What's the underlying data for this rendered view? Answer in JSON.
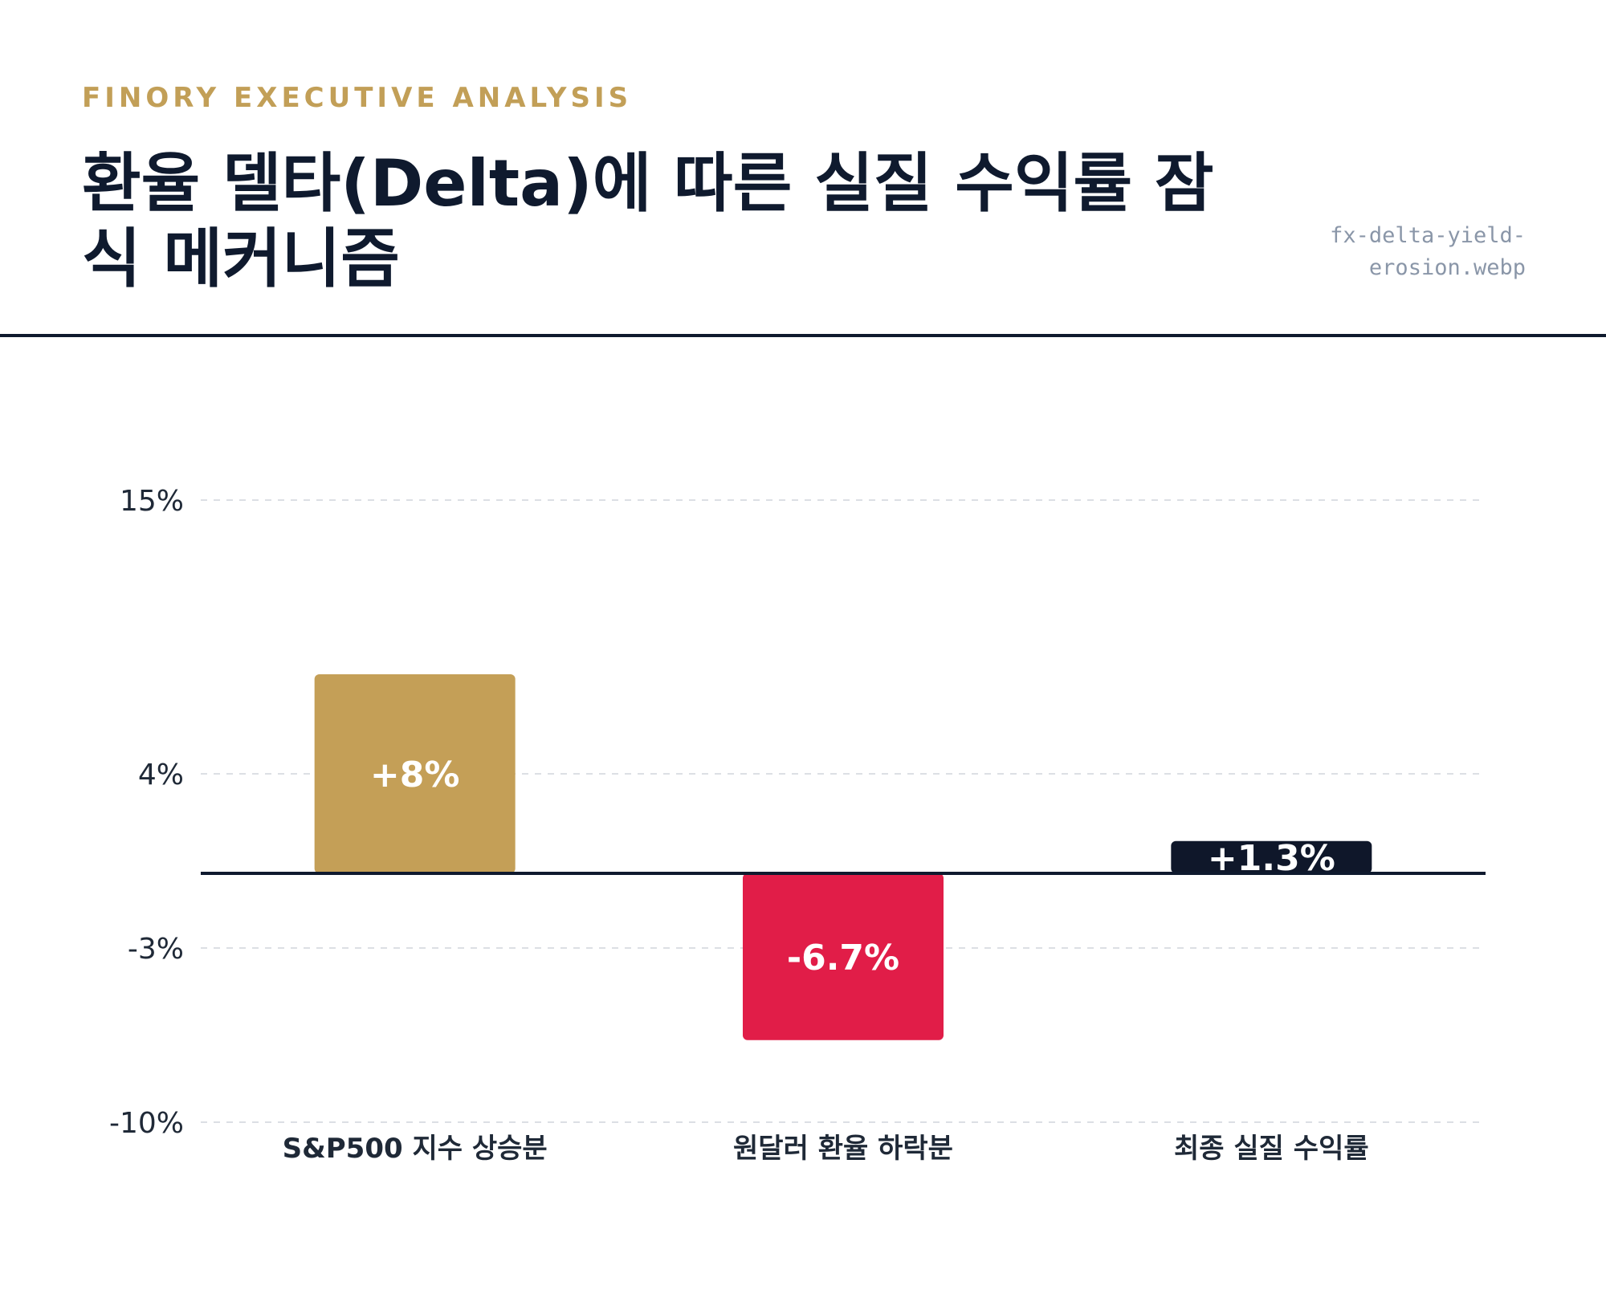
{
  "header": {
    "eyebrow": "FINORY EXECUTIVE ANALYSIS",
    "title": "환율 델타(Delta)에 따른 실질 수익률 잠식 메커니즘",
    "filename": "fx-delta-yield-erosion.webp"
  },
  "chart_data": {
    "type": "bar",
    "categories": [
      "S&P500 지수 상승분",
      "원달러 환율 하락분",
      "최종 실질 수익률"
    ],
    "values": [
      8,
      -6.7,
      1.3
    ],
    "value_labels": [
      "+8%",
      "-6.7%",
      "+1.3%"
    ],
    "yticks": [
      15,
      4,
      -3,
      -10
    ],
    "ytick_labels": [
      "15%",
      "4%",
      "-3%",
      "-10%"
    ],
    "ylim": [
      -10,
      15
    ],
    "grid": true,
    "colors": [
      "#c49f57",
      "#e11d48",
      "#0f172a"
    ]
  }
}
